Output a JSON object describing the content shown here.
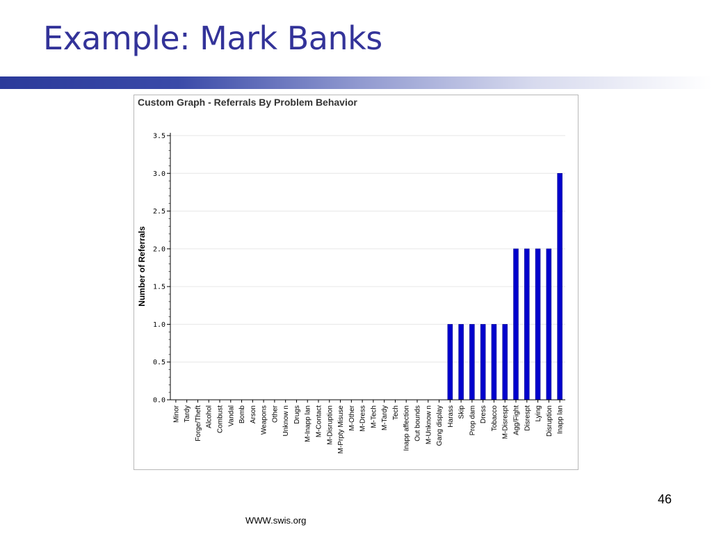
{
  "slide": {
    "title": "Example: Mark Banks",
    "page_number": "46",
    "footer": "WWW.swis.org"
  },
  "colors": {
    "title": "#333399",
    "bar": "#0000cc",
    "grid": "#e6e6e6"
  },
  "chart_data": {
    "type": "bar",
    "title": "Custom Graph - Referrals By Problem Behavior",
    "xlabel": "",
    "ylabel": "Number of Referrals",
    "ylim": [
      0,
      3.5
    ],
    "yticks": [
      "0.0",
      "0.5",
      "1.0",
      "1.5",
      "2.0",
      "2.5",
      "3.0",
      "3.5"
    ],
    "grid": true,
    "categories": [
      "Minor",
      "Tardy",
      "Forge/Theft",
      "Alcohol",
      "Combust",
      "Vandal",
      "Bomb",
      "Arson",
      "Weapons",
      "Other",
      "Unknow n",
      "Drugs",
      "M-Inapp lan",
      "M-Contact",
      "M-Disruption",
      "M-Prpty Misuse",
      "M-Other",
      "M-Dress",
      "M-Tech",
      "M-Tardy",
      "Tech",
      "Inapp affection",
      "Out bounds",
      "M-Unknow n",
      "Gang display",
      "Harass",
      "Skip",
      "Prop dam",
      "Dress",
      "Tobacco",
      "M-Disrespt",
      "Agg/Fight",
      "Disrespt",
      "Lying",
      "Disruption",
      "Inapp lan"
    ],
    "values": [
      0,
      0,
      0,
      0,
      0,
      0,
      0,
      0,
      0,
      0,
      0,
      0,
      0,
      0,
      0,
      0,
      0,
      0,
      0,
      0,
      0,
      0,
      0,
      0,
      0,
      1,
      1,
      1,
      1,
      1,
      1,
      2,
      2,
      2,
      2,
      3
    ]
  }
}
